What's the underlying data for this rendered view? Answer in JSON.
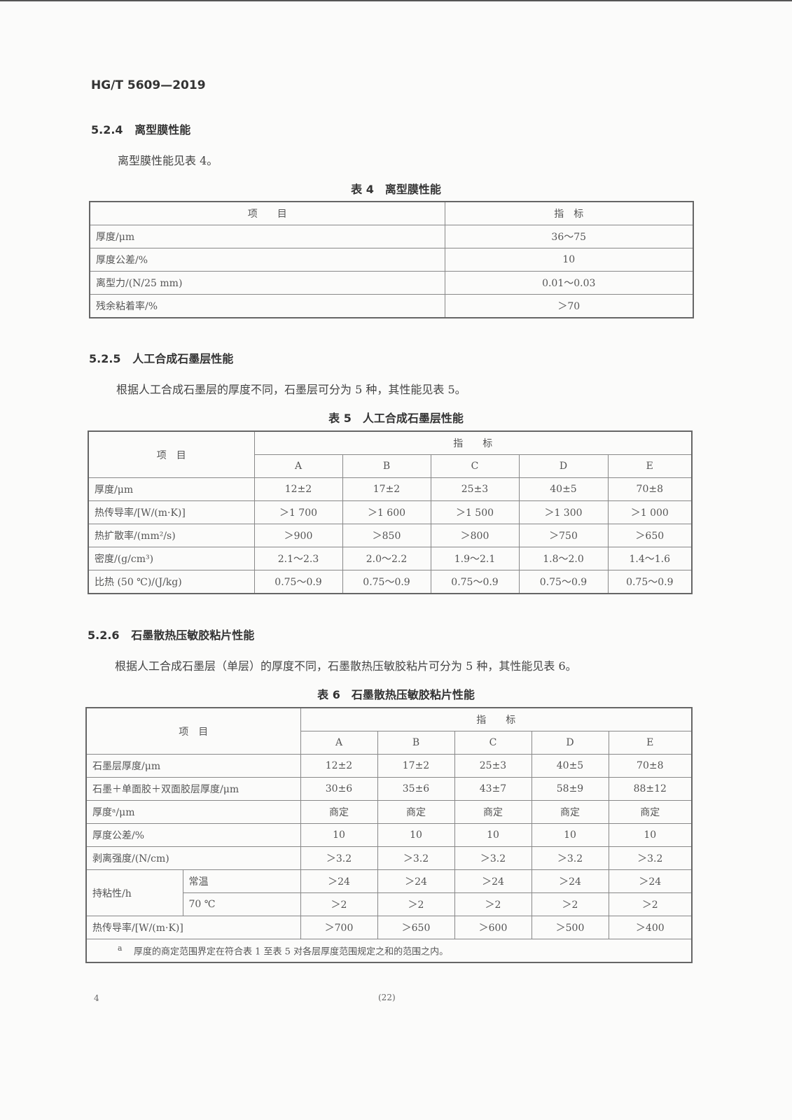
{
  "header": {
    "standard_no": "HG/T 5609—2019"
  },
  "s524": {
    "heading_no": "5.2.4",
    "heading": "离型膜性能",
    "para": "离型膜性能见表 4。",
    "caption": "表 4　离型膜性能",
    "header": [
      "项　　目",
      "指　标"
    ],
    "rows": [
      [
        "厚度/μm",
        "36～75"
      ],
      [
        "厚度公差/%",
        "10"
      ],
      [
        "离型力/(N/25 mm)",
        "0.01～0.03"
      ],
      [
        "残余粘着率/%",
        "＞70"
      ]
    ]
  },
  "s525": {
    "heading_no": "5.2.5",
    "heading": "人工合成石墨层性能",
    "para": "根据人工合成石墨层的厚度不同，石墨层可分为 5 种，其性能见表 5。",
    "caption": "表 5　人工合成石墨层性能",
    "item_header": "项　目",
    "index_header": "指　　标",
    "grades": [
      "A",
      "B",
      "C",
      "D",
      "E"
    ],
    "rows": [
      [
        "厚度/μm",
        "12±2",
        "17±2",
        "25±3",
        "40±5",
        "70±8"
      ],
      [
        "热传导率/[W/(m·K)]",
        "＞1 700",
        "＞1 600",
        "＞1 500",
        "＞1 300",
        "＞1 000"
      ],
      [
        "热扩散率/(mm²/s)",
        "＞900",
        "＞850",
        "＞800",
        "＞750",
        "＞650"
      ],
      [
        "密度/(g/cm³)",
        "2.1～2.3",
        "2.0～2.2",
        "1.9～2.1",
        "1.8～2.0",
        "1.4～1.6"
      ],
      [
        "比热 (50 ℃)/(J/kg)",
        "0.75～0.9",
        "0.75～0.9",
        "0.75～0.9",
        "0.75～0.9",
        "0.75～0.9"
      ]
    ]
  },
  "s526": {
    "heading_no": "5.2.6",
    "heading": "石墨散热压敏胶粘片性能",
    "para": "根据人工合成石墨层（单层）的厚度不同，石墨散热压敏胶粘片可分为 5 种，其性能见表 6。",
    "caption": "表 6　石墨散热压敏胶粘片性能",
    "item_header": "项　目",
    "index_header": "指　　标",
    "grades": [
      "A",
      "B",
      "C",
      "D",
      "E"
    ],
    "rows": [
      [
        "石墨层厚度/μm",
        "12±2",
        "17±2",
        "25±3",
        "40±5",
        "70±8"
      ],
      [
        "石墨＋单面胶＋双面胶层厚度/μm",
        "30±6",
        "35±6",
        "43±7",
        "58±9",
        "88±12"
      ],
      [
        "厚度ᵃ/μm",
        "商定",
        "商定",
        "商定",
        "商定",
        "商定"
      ],
      [
        "厚度公差/%",
        "10",
        "10",
        "10",
        "10",
        "10"
      ],
      [
        "剥离强度/(N/cm)",
        "＞3.2",
        "＞3.2",
        "＞3.2",
        "＞3.2",
        "＞3.2"
      ]
    ],
    "hold_label": "持粘性/h",
    "hold_rows": [
      [
        "常温",
        "＞24",
        "＞24",
        "＞24",
        "＞24",
        "＞24"
      ],
      [
        "70 ℃",
        "＞2",
        "＞2",
        "＞2",
        "＞2",
        "＞2"
      ]
    ],
    "last_row": [
      "热传导率/[W/(m·K)]",
      "＞700",
      "＞650",
      "＞600",
      "＞500",
      "＞400"
    ],
    "footnote_mark": "a",
    "footnote": "厚度的商定范围界定在符合表 1 至表 5 对各层厚度范围规定之和的范围之内。"
  },
  "footer": {
    "page_left": "4",
    "page_center": "(22)"
  }
}
